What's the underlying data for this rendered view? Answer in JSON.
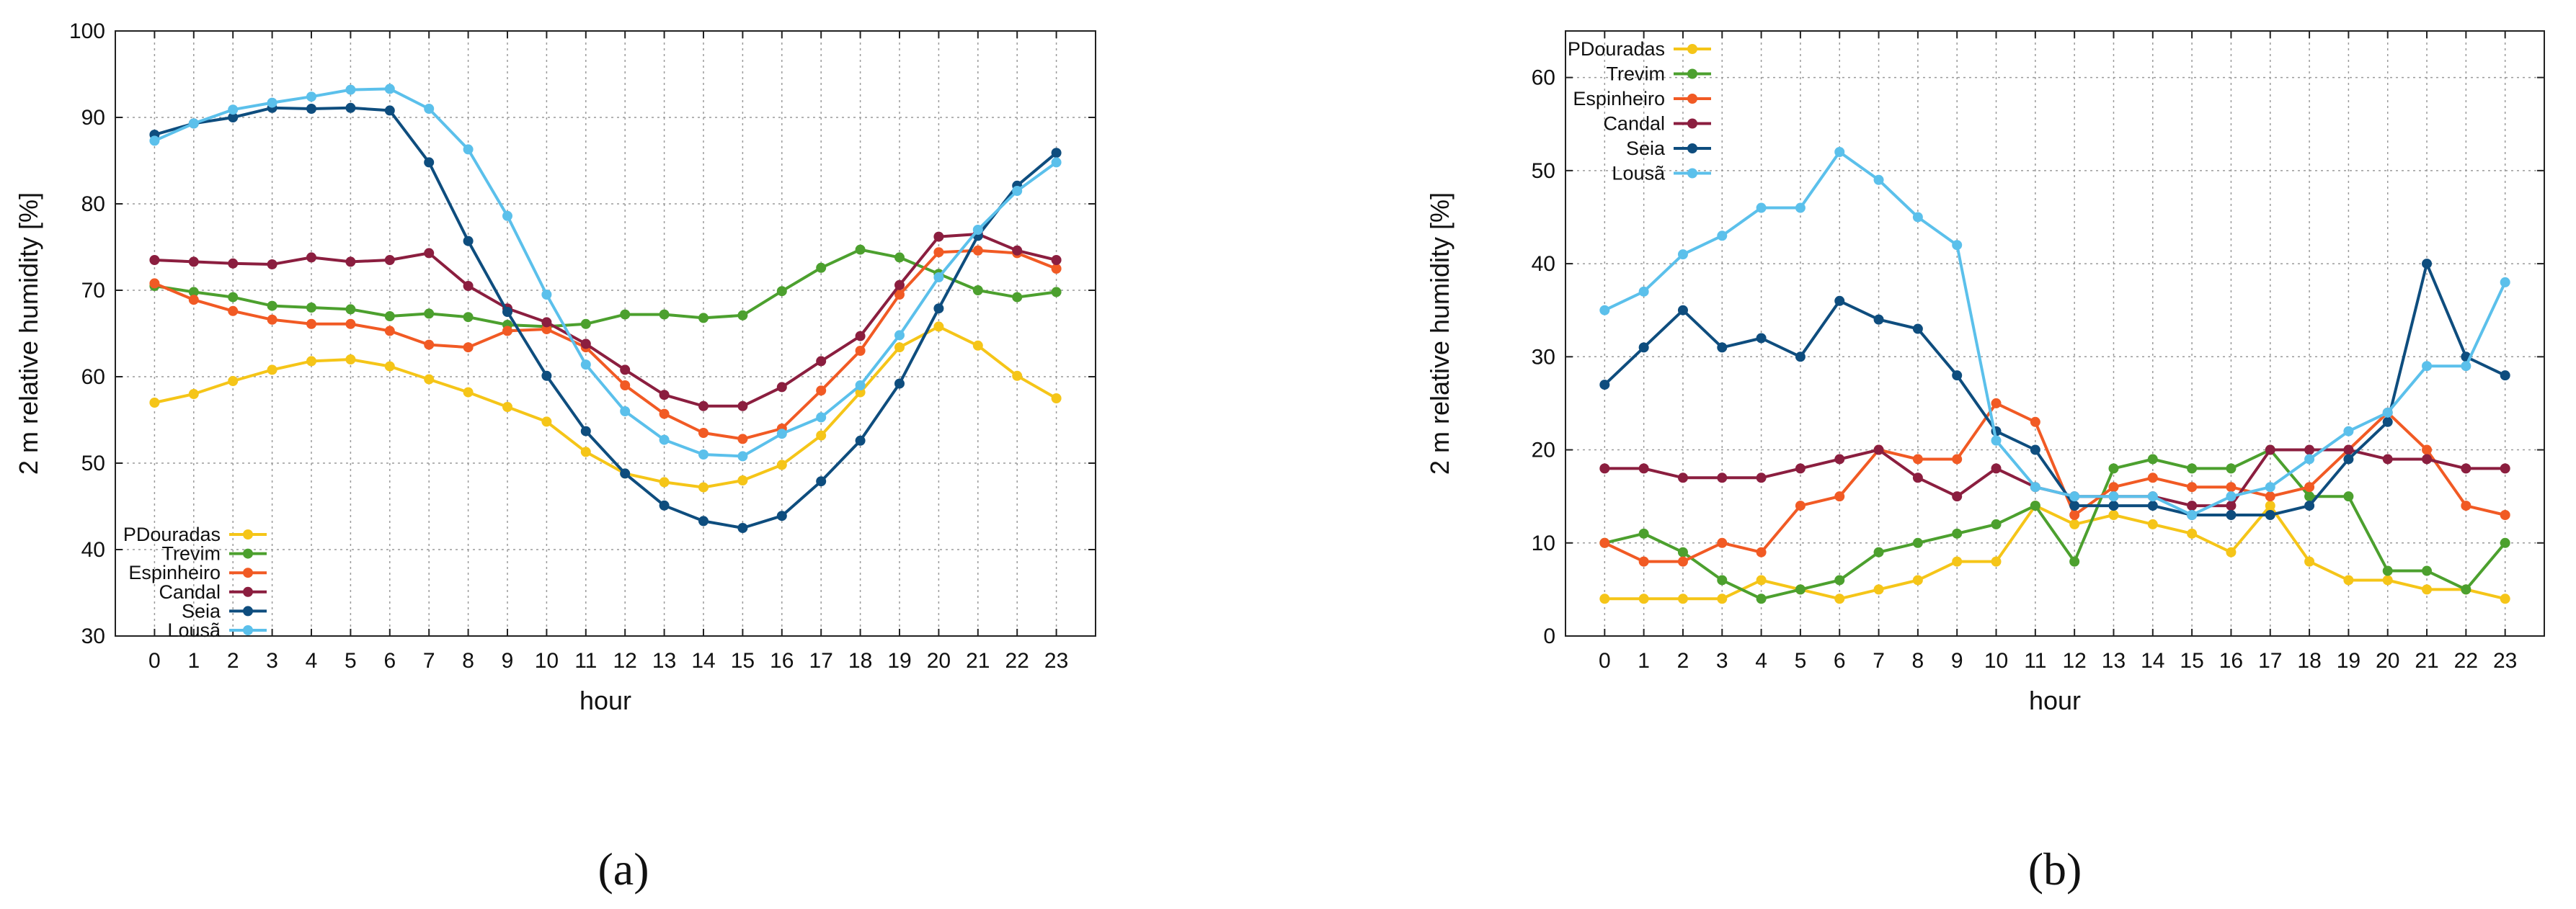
{
  "chart_data": [
    {
      "type": "line",
      "caption": "(a)",
      "xlabel": "hour",
      "ylabel": "2 m relative humidity [%]",
      "ylim": [
        30,
        100
      ],
      "yticks": [
        30,
        40,
        50,
        60,
        70,
        80,
        90,
        100
      ],
      "categories": [
        "0",
        "1",
        "2",
        "3",
        "4",
        "5",
        "6",
        "7",
        "8",
        "9",
        "10",
        "11",
        "12",
        "13",
        "14",
        "15",
        "16",
        "17",
        "18",
        "19",
        "20",
        "21",
        "22",
        "23"
      ],
      "grid": true,
      "legend_position": "bottom-left",
      "series": [
        {
          "name": "PDouradas",
          "color": "#f5c518",
          "values": [
            57.0,
            58.0,
            59.5,
            60.8,
            61.8,
            62.0,
            61.2,
            59.7,
            58.2,
            56.5,
            54.8,
            51.3,
            48.8,
            47.8,
            47.2,
            48.0,
            49.8,
            53.2,
            58.2,
            63.4,
            65.8,
            63.6,
            60.1,
            57.5
          ]
        },
        {
          "name": "Trevim",
          "color": "#4ca02e",
          "values": [
            70.5,
            69.8,
            69.2,
            68.2,
            68.0,
            67.8,
            67.0,
            67.3,
            66.9,
            66.0,
            65.8,
            66.1,
            67.2,
            67.2,
            66.8,
            67.1,
            69.9,
            72.6,
            74.7,
            73.8,
            71.9,
            70.0,
            69.2,
            69.8
          ]
        },
        {
          "name": "Espinheiro",
          "color": "#f15a24",
          "values": [
            70.8,
            68.9,
            67.6,
            66.6,
            66.1,
            66.1,
            65.3,
            63.7,
            63.4,
            65.3,
            65.5,
            63.4,
            59.0,
            55.7,
            53.5,
            52.8,
            54.0,
            58.4,
            63.0,
            69.5,
            74.4,
            74.6,
            74.3,
            72.5
          ]
        },
        {
          "name": "Candal",
          "color": "#8b1e3f",
          "values": [
            73.5,
            73.3,
            73.1,
            73.0,
            73.8,
            73.3,
            73.5,
            74.3,
            70.5,
            67.9,
            66.3,
            63.8,
            60.8,
            57.9,
            56.6,
            56.6,
            58.8,
            61.8,
            64.7,
            70.6,
            76.2,
            76.5,
            74.6,
            73.5
          ]
        },
        {
          "name": "Seia",
          "color": "#0e4d7e",
          "values": [
            88.0,
            89.3,
            90.0,
            91.1,
            91.0,
            91.1,
            90.8,
            84.8,
            75.7,
            67.5,
            60.1,
            53.7,
            48.8,
            45.1,
            43.3,
            42.5,
            43.9,
            47.9,
            52.6,
            59.2,
            67.9,
            76.3,
            82.1,
            85.9
          ]
        },
        {
          "name": "Lousã",
          "color": "#5bc0eb",
          "values": [
            87.3,
            89.3,
            90.9,
            91.7,
            92.4,
            93.2,
            93.3,
            91.0,
            86.3,
            78.6,
            69.5,
            61.4,
            56.0,
            52.7,
            51.0,
            50.8,
            53.4,
            55.3,
            59.0,
            64.8,
            71.5,
            77.0,
            81.5,
            84.8
          ]
        }
      ]
    },
    {
      "type": "line",
      "caption": "(b)",
      "xlabel": "hour",
      "ylabel": "2 m relative humidity [%]",
      "ylim": [
        0,
        65
      ],
      "yticks": [
        0,
        10,
        20,
        30,
        40,
        50,
        60
      ],
      "categories": [
        "0",
        "1",
        "2",
        "3",
        "4",
        "5",
        "6",
        "7",
        "8",
        "9",
        "10",
        "11",
        "12",
        "13",
        "14",
        "15",
        "16",
        "17",
        "18",
        "19",
        "20",
        "21",
        "22",
        "23"
      ],
      "grid": true,
      "legend_position": "top-left",
      "series": [
        {
          "name": "PDouradas",
          "color": "#f5c518",
          "values": [
            4,
            4,
            4,
            4,
            6,
            5,
            4,
            5,
            6,
            8,
            8,
            14,
            12,
            13,
            12,
            11,
            9,
            14,
            8,
            6,
            6,
            5,
            5,
            4
          ]
        },
        {
          "name": "Trevim",
          "color": "#4ca02e",
          "values": [
            10,
            11,
            9,
            6,
            4,
            5,
            6,
            9,
            10,
            11,
            12,
            14,
            8,
            18,
            19,
            18,
            18,
            20,
            15,
            15,
            7,
            7,
            5,
            10
          ]
        },
        {
          "name": "Espinheiro",
          "color": "#f15a24",
          "values": [
            10,
            8,
            8,
            10,
            9,
            14,
            15,
            20,
            19,
            19,
            25,
            23,
            13,
            16,
            17,
            16,
            16,
            15,
            16,
            20,
            24,
            20,
            14,
            13
          ]
        },
        {
          "name": "Candal",
          "color": "#8b1e3f",
          "values": [
            18,
            18,
            17,
            17,
            17,
            18,
            19,
            20,
            17,
            15,
            18,
            16,
            15,
            15,
            15,
            14,
            14,
            20,
            20,
            20,
            19,
            19,
            18,
            18
          ]
        },
        {
          "name": "Seia",
          "color": "#0e4d7e",
          "values": [
            27,
            31,
            35,
            31,
            32,
            30,
            36,
            34,
            33,
            28,
            22,
            20,
            14,
            14,
            14,
            13,
            13,
            13,
            14,
            19,
            23,
            40,
            30,
            28
          ]
        },
        {
          "name": "Lousã",
          "color": "#5bc0eb",
          "values": [
            35,
            37,
            41,
            43,
            46,
            46,
            52,
            49,
            45,
            42,
            21,
            16,
            15,
            15,
            15,
            13,
            15,
            16,
            19,
            22,
            24,
            29,
            29,
            38
          ]
        }
      ]
    }
  ]
}
